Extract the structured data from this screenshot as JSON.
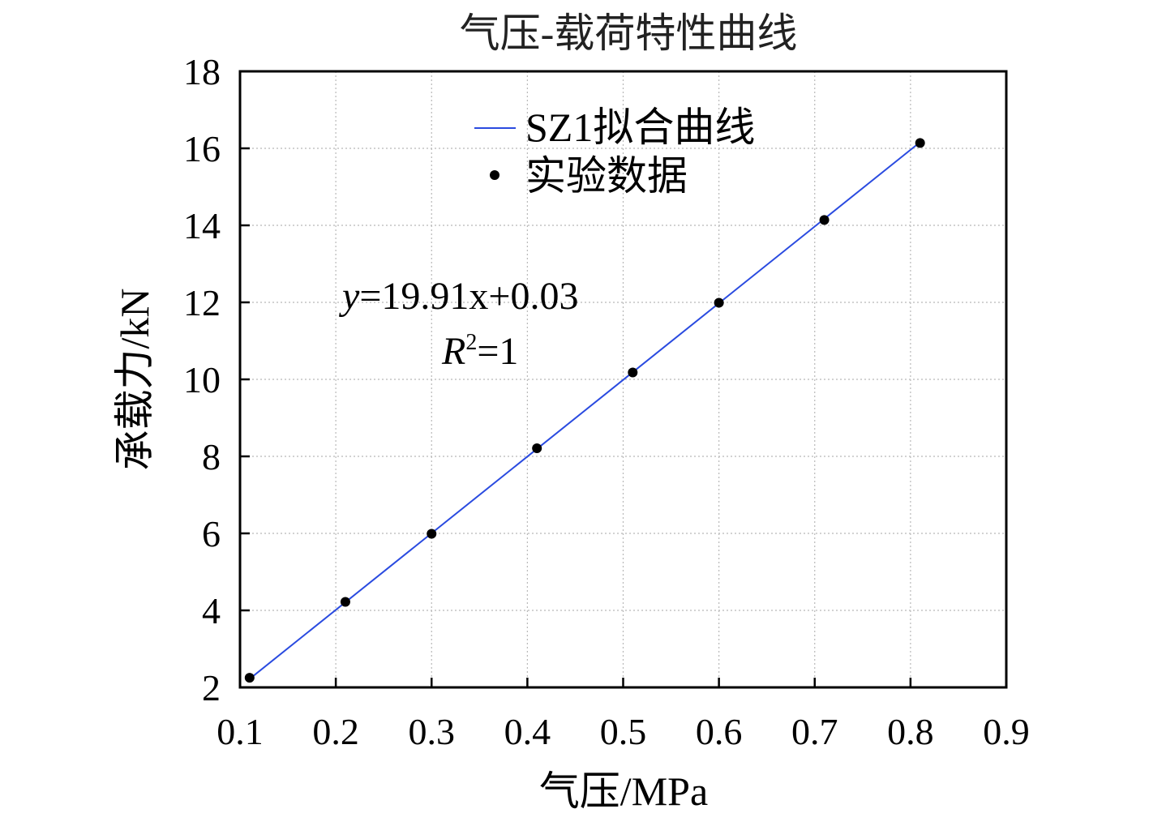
{
  "chart_data": {
    "type": "scatter",
    "title": "气压-载荷特性曲线",
    "xlabel": "气压/MPa",
    "ylabel": "承载力/kN",
    "xlim": [
      0.1,
      0.9
    ],
    "ylim": [
      2,
      18
    ],
    "x_ticks": [
      "0.1",
      "0.2",
      "0.3",
      "0.4",
      "0.5",
      "0.6",
      "0.7",
      "0.8",
      "0.9"
    ],
    "y_ticks": [
      "2",
      "4",
      "6",
      "8",
      "10",
      "12",
      "14",
      "16",
      "18"
    ],
    "grid": true,
    "legend_position": "top-center",
    "series": [
      {
        "name": "SZ1拟合曲线",
        "kind": "line",
        "color": "#2a4be0",
        "x": [
          0.11,
          0.81
        ],
        "y": [
          2.22,
          16.16
        ]
      },
      {
        "name": "实验数据",
        "kind": "points",
        "color": "#000000",
        "x": [
          0.11,
          0.21,
          0.3,
          0.41,
          0.51,
          0.6,
          0.71,
          0.81
        ],
        "y": [
          2.25,
          4.22,
          5.99,
          8.21,
          10.18,
          11.99,
          14.14,
          16.14
        ]
      }
    ],
    "annotations": {
      "equation_var": "y",
      "equation_rest": "=19.91x+0.03",
      "r2_var": "R",
      "r2_sup": "2",
      "r2_rest": "=1"
    }
  }
}
